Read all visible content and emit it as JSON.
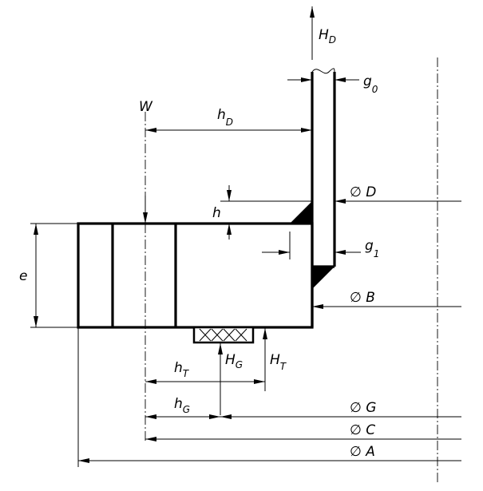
{
  "labels": {
    "HD": {
      "main": "H",
      "sub": "D"
    },
    "g0": {
      "main": "g",
      "sub": "0"
    },
    "W": {
      "main": "W"
    },
    "hD": {
      "main": "h",
      "sub": "D"
    },
    "h": {
      "main": "h"
    },
    "D": {
      "main": "∅ D"
    },
    "g1": {
      "main": "g",
      "sub": "1"
    },
    "e": {
      "main": "e"
    },
    "B": {
      "main": "∅ B"
    },
    "HG": {
      "main": "H",
      "sub": "G"
    },
    "HT": {
      "main": "H",
      "sub": "T"
    },
    "hT": {
      "main": "h",
      "sub": "T"
    },
    "hG": {
      "main": "h",
      "sub": "G"
    },
    "G": {
      "main": "∅ G"
    },
    "C": {
      "main": "∅ C"
    },
    "A": {
      "main": "∅ A"
    }
  }
}
